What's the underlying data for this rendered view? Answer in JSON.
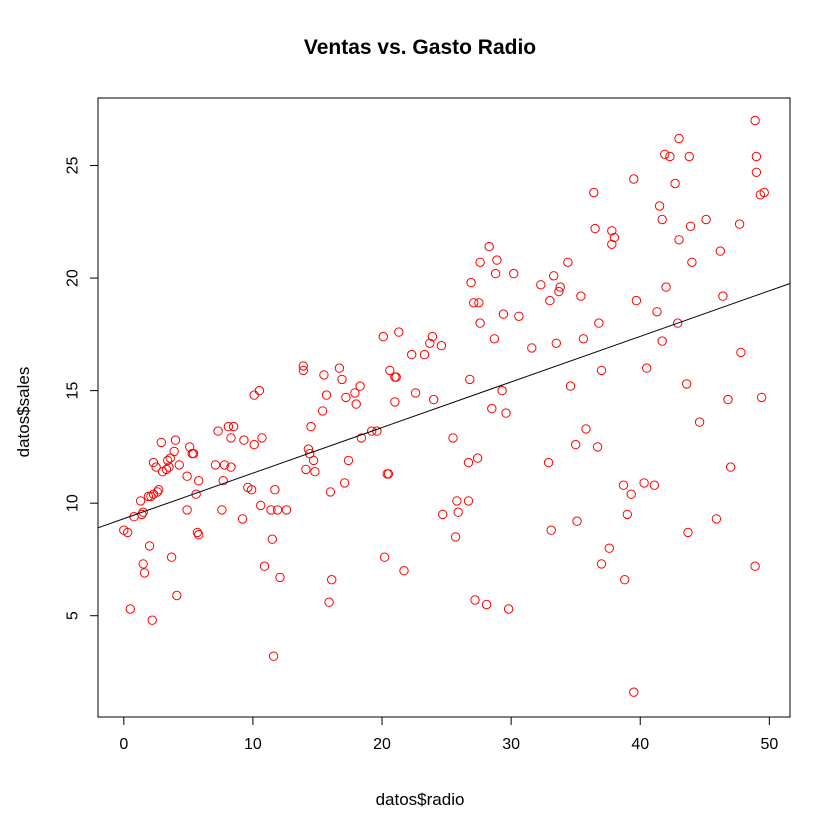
{
  "chart_data": {
    "type": "scatter",
    "title": "Ventas vs. Gasto Radio",
    "xlabel": "datos$radio",
    "ylabel": "datos$sales",
    "xlim": [
      -2,
      51.6
    ],
    "ylim": [
      0.5,
      28.0
    ],
    "xticks": [
      0,
      10,
      20,
      30,
      40,
      50
    ],
    "yticks": [
      5,
      10,
      15,
      20,
      25
    ],
    "grid": false,
    "legend": "none",
    "point_color": "#ff0000",
    "line_color": "#000000",
    "regression_line": {
      "intercept": 9.31,
      "slope": 0.2025
    },
    "points": [
      [
        0.0,
        8.8
      ],
      [
        0.3,
        8.7
      ],
      [
        0.5,
        5.3
      ],
      [
        0.8,
        9.4
      ],
      [
        1.3,
        10.1
      ],
      [
        1.4,
        9.5
      ],
      [
        1.5,
        9.6
      ],
      [
        1.5,
        7.3
      ],
      [
        1.6,
        6.9
      ],
      [
        1.9,
        10.3
      ],
      [
        2.0,
        8.1
      ],
      [
        2.1,
        10.3
      ],
      [
        2.2,
        4.8
      ],
      [
        2.3,
        10.4
      ],
      [
        2.3,
        11.8
      ],
      [
        2.5,
        11.6
      ],
      [
        2.6,
        10.5
      ],
      [
        2.7,
        10.6
      ],
      [
        2.9,
        12.7
      ],
      [
        3.0,
        11.4
      ],
      [
        3.3,
        11.5
      ],
      [
        3.4,
        11.9
      ],
      [
        3.5,
        11.6
      ],
      [
        3.6,
        12.0
      ],
      [
        3.7,
        7.6
      ],
      [
        3.9,
        12.3
      ],
      [
        4.0,
        12.8
      ],
      [
        4.1,
        5.9
      ],
      [
        4.3,
        11.7
      ],
      [
        4.9,
        11.2
      ],
      [
        4.9,
        9.7
      ],
      [
        5.1,
        12.5
      ],
      [
        5.3,
        12.2
      ],
      [
        5.4,
        12.2
      ],
      [
        5.6,
        10.4
      ],
      [
        5.7,
        8.7
      ],
      [
        5.8,
        8.6
      ],
      [
        5.8,
        11.0
      ],
      [
        7.1,
        11.7
      ],
      [
        7.3,
        13.2
      ],
      [
        7.6,
        9.7
      ],
      [
        7.7,
        11.0
      ],
      [
        7.8,
        11.7
      ],
      [
        8.1,
        13.4
      ],
      [
        8.3,
        12.9
      ],
      [
        8.3,
        11.6
      ],
      [
        8.5,
        13.4
      ],
      [
        9.2,
        9.3
      ],
      [
        9.3,
        12.8
      ],
      [
        9.6,
        10.7
      ],
      [
        9.9,
        10.6
      ],
      [
        10.1,
        12.6
      ],
      [
        10.1,
        14.8
      ],
      [
        10.5,
        15.0
      ],
      [
        10.6,
        9.9
      ],
      [
        10.7,
        12.9
      ],
      [
        10.9,
        7.2
      ],
      [
        11.4,
        9.7
      ],
      [
        11.5,
        8.4
      ],
      [
        11.6,
        3.2
      ],
      [
        11.7,
        10.6
      ],
      [
        11.9,
        9.7
      ],
      [
        12.1,
        6.7
      ],
      [
        12.6,
        9.7
      ],
      [
        13.9,
        16.1
      ],
      [
        13.9,
        15.9
      ],
      [
        14.1,
        11.5
      ],
      [
        14.3,
        12.4
      ],
      [
        14.4,
        12.2
      ],
      [
        14.5,
        13.4
      ],
      [
        14.7,
        11.9
      ],
      [
        14.8,
        11.4
      ],
      [
        15.4,
        14.1
      ],
      [
        15.5,
        15.7
      ],
      [
        15.7,
        14.8
      ],
      [
        15.9,
        5.6
      ],
      [
        16.0,
        10.5
      ],
      [
        16.1,
        6.6
      ],
      [
        16.7,
        16.0
      ],
      [
        16.9,
        15.5
      ],
      [
        17.1,
        10.9
      ],
      [
        17.2,
        14.7
      ],
      [
        17.4,
        11.9
      ],
      [
        17.9,
        14.9
      ],
      [
        18.0,
        14.4
      ],
      [
        18.3,
        15.2
      ],
      [
        18.4,
        12.9
      ],
      [
        19.2,
        13.2
      ],
      [
        19.6,
        13.2
      ],
      [
        20.1,
        17.4
      ],
      [
        20.2,
        7.6
      ],
      [
        20.4,
        11.3
      ],
      [
        20.5,
        11.3
      ],
      [
        20.6,
        15.9
      ],
      [
        21.0,
        14.5
      ],
      [
        21.0,
        15.6
      ],
      [
        21.1,
        15.6
      ],
      [
        21.3,
        17.6
      ],
      [
        21.7,
        7.0
      ],
      [
        22.3,
        16.6
      ],
      [
        22.6,
        14.9
      ],
      [
        23.3,
        16.6
      ],
      [
        23.7,
        17.1
      ],
      [
        23.9,
        17.4
      ],
      [
        24.0,
        14.6
      ],
      [
        24.6,
        17.0
      ],
      [
        24.7,
        9.5
      ],
      [
        25.5,
        12.9
      ],
      [
        25.7,
        8.5
      ],
      [
        25.8,
        10.1
      ],
      [
        25.9,
        9.6
      ],
      [
        26.7,
        10.1
      ],
      [
        26.7,
        11.8
      ],
      [
        26.8,
        15.5
      ],
      [
        26.9,
        19.8
      ],
      [
        27.1,
        18.9
      ],
      [
        27.2,
        5.7
      ],
      [
        27.4,
        12.0
      ],
      [
        27.5,
        18.9
      ],
      [
        27.6,
        18.0
      ],
      [
        27.6,
        20.7
      ],
      [
        28.1,
        5.5
      ],
      [
        28.3,
        21.4
      ],
      [
        28.5,
        14.2
      ],
      [
        28.7,
        17.3
      ],
      [
        28.8,
        20.2
      ],
      [
        28.9,
        20.8
      ],
      [
        29.3,
        15.0
      ],
      [
        29.4,
        18.4
      ],
      [
        29.6,
        14.0
      ],
      [
        29.8,
        5.3
      ],
      [
        30.2,
        20.2
      ],
      [
        30.6,
        18.3
      ],
      [
        31.6,
        16.9
      ],
      [
        32.3,
        19.7
      ],
      [
        32.9,
        11.8
      ],
      [
        33.0,
        19.0
      ],
      [
        33.1,
        8.8
      ],
      [
        33.3,
        20.1
      ],
      [
        33.5,
        17.1
      ],
      [
        33.7,
        19.4
      ],
      [
        33.8,
        19.6
      ],
      [
        34.4,
        20.7
      ],
      [
        34.6,
        15.2
      ],
      [
        35.0,
        12.6
      ],
      [
        35.1,
        9.2
      ],
      [
        35.4,
        19.2
      ],
      [
        35.6,
        17.3
      ],
      [
        35.8,
        13.3
      ],
      [
        36.4,
        23.8
      ],
      [
        36.5,
        22.2
      ],
      [
        36.7,
        12.5
      ],
      [
        36.8,
        18.0
      ],
      [
        37.0,
        7.3
      ],
      [
        37.0,
        15.9
      ],
      [
        37.6,
        8.0
      ],
      [
        37.8,
        21.5
      ],
      [
        37.8,
        22.1
      ],
      [
        38.0,
        21.8
      ],
      [
        38.7,
        10.8
      ],
      [
        38.8,
        6.6
      ],
      [
        39.0,
        9.5
      ],
      [
        39.3,
        10.4
      ],
      [
        39.5,
        24.4
      ],
      [
        39.5,
        1.6
      ],
      [
        39.7,
        19.0
      ],
      [
        40.3,
        10.9
      ],
      [
        40.5,
        16.0
      ],
      [
        41.1,
        10.8
      ],
      [
        41.3,
        18.5
      ],
      [
        41.5,
        23.2
      ],
      [
        41.7,
        17.2
      ],
      [
        41.7,
        22.6
      ],
      [
        41.9,
        25.5
      ],
      [
        42.0,
        19.6
      ],
      [
        42.3,
        25.4
      ],
      [
        42.7,
        24.2
      ],
      [
        42.9,
        18.0
      ],
      [
        43.0,
        21.7
      ],
      [
        43.0,
        26.2
      ],
      [
        43.6,
        15.3
      ],
      [
        43.7,
        8.7
      ],
      [
        43.8,
        25.4
      ],
      [
        43.9,
        22.3
      ],
      [
        44.0,
        20.7
      ],
      [
        44.6,
        13.6
      ],
      [
        45.1,
        22.6
      ],
      [
        45.9,
        9.3
      ],
      [
        46.2,
        21.2
      ],
      [
        46.4,
        19.2
      ],
      [
        46.8,
        14.6
      ],
      [
        47.0,
        11.6
      ],
      [
        47.7,
        22.4
      ],
      [
        47.8,
        16.7
      ],
      [
        48.9,
        27.0
      ],
      [
        48.9,
        7.2
      ],
      [
        49.0,
        24.7
      ],
      [
        49.0,
        25.4
      ],
      [
        49.3,
        23.7
      ],
      [
        49.4,
        14.7
      ],
      [
        49.6,
        23.8
      ]
    ]
  }
}
